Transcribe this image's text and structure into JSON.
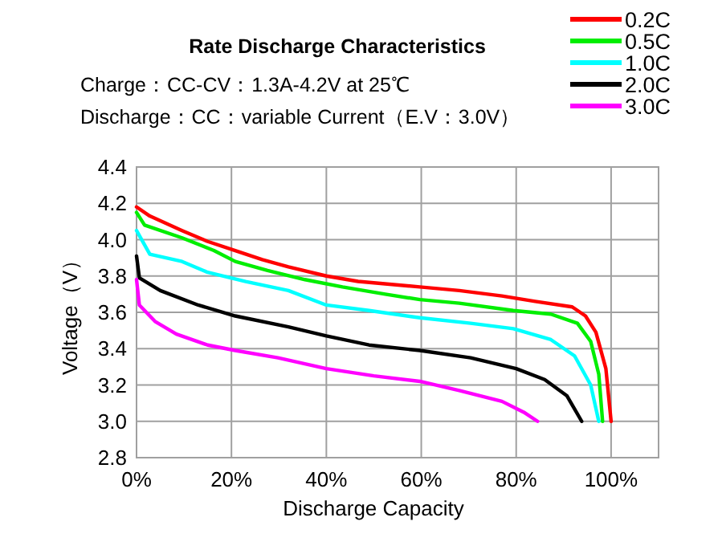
{
  "chart_data": {
    "type": "line",
    "title": "Rate Discharge Characteristics",
    "xlabel": "Discharge Capacity",
    "ylabel": "Voltage（V）",
    "annotations": [
      "Charge：CC-CV：1.3A-4.2V at 25℃",
      "Discharge：CC：variable Current（E.V：3.0V）"
    ],
    "xlim": [
      0,
      110
    ],
    "xticks": [
      {
        "value": 0,
        "label": "0%"
      },
      {
        "value": 20,
        "label": "20%"
      },
      {
        "value": 40,
        "label": "40%"
      },
      {
        "value": 60,
        "label": "60%"
      },
      {
        "value": 80,
        "label": "80%"
      },
      {
        "value": 100,
        "label": "100%"
      }
    ],
    "ylim": [
      2.8,
      4.4
    ],
    "yticks": [
      {
        "value": 2.8,
        "label": "2.8"
      },
      {
        "value": 3.0,
        "label": "3.0"
      },
      {
        "value": 3.2,
        "label": "3.2"
      },
      {
        "value": 3.4,
        "label": "3.4"
      },
      {
        "value": 3.6,
        "label": "3.6"
      },
      {
        "value": 3.8,
        "label": "3.8"
      },
      {
        "value": 4.0,
        "label": "4.0"
      },
      {
        "value": 4.2,
        "label": "4.2"
      },
      {
        "value": 4.4,
        "label": "4.4"
      }
    ],
    "grid": true,
    "legend": "top right",
    "marker": "none",
    "line_style": "solid",
    "series": [
      {
        "name": "0.2C",
        "color": "#ff0000",
        "x": [
          0,
          2.8,
          9.6,
          15,
          20.8,
          26.5,
          32,
          40,
          46.7,
          59.7,
          68,
          77,
          84,
          91.8,
          94.6,
          96.8,
          98.9,
          100
        ],
        "values": [
          4.18,
          4.13,
          4.05,
          3.99,
          3.94,
          3.89,
          3.85,
          3.8,
          3.77,
          3.74,
          3.72,
          3.69,
          3.66,
          3.63,
          3.58,
          3.49,
          3.29,
          3.0
        ]
      },
      {
        "name": "0.5C",
        "color": "#00ee00",
        "x": [
          0,
          1.7,
          9.6,
          16.3,
          20.8,
          27.6,
          35.5,
          43.4,
          52.4,
          59.7,
          68,
          79.4,
          87.3,
          92.9,
          95.7,
          97.4,
          98.2
        ],
        "values": [
          4.15,
          4.08,
          4.01,
          3.94,
          3.88,
          3.83,
          3.78,
          3.74,
          3.7,
          3.67,
          3.65,
          3.61,
          3.59,
          3.54,
          3.44,
          3.26,
          3.0
        ]
      },
      {
        "name": "1.0C",
        "color": "#00ffff",
        "x": [
          0,
          2.8,
          9.6,
          15,
          23,
          32,
          40,
          49,
          59.7,
          70.4,
          79.4,
          87.3,
          92.3,
          95.7,
          97.4
        ],
        "values": [
          4.05,
          3.92,
          3.88,
          3.82,
          3.77,
          3.72,
          3.64,
          3.61,
          3.57,
          3.54,
          3.51,
          3.45,
          3.36,
          3.2,
          3.0
        ]
      },
      {
        "name": "2.0C",
        "color": "#000000",
        "x": [
          0,
          0.6,
          5,
          13,
          20.8,
          32,
          40,
          49,
          59.7,
          70.4,
          80,
          86,
          90.7,
          93.8
        ],
        "values": [
          3.91,
          3.79,
          3.72,
          3.64,
          3.58,
          3.52,
          3.47,
          3.42,
          3.39,
          3.35,
          3.29,
          3.23,
          3.14,
          3.0
        ]
      },
      {
        "name": "3.0C",
        "color": "#ff00ff",
        "x": [
          0,
          0.6,
          3.9,
          8.4,
          15,
          20.8,
          29.8,
          40,
          50,
          59.7,
          68,
          77,
          81.6,
          84.5
        ],
        "values": [
          3.78,
          3.64,
          3.55,
          3.48,
          3.42,
          3.39,
          3.35,
          3.29,
          3.25,
          3.22,
          3.17,
          3.11,
          3.05,
          3.0
        ]
      }
    ]
  }
}
